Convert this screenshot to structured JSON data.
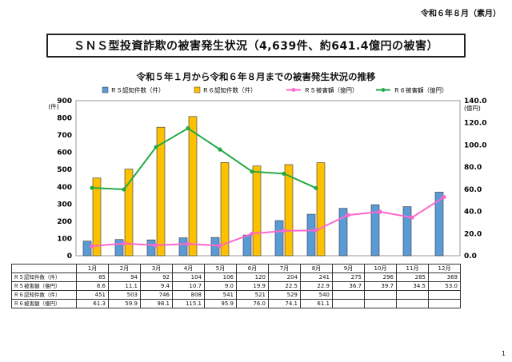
{
  "header": {
    "date_label": "令和６年８月（素月）",
    "title": "ＳＮＳ型投資詐欺の被害発生状況（4,639件、約641.4億円の被害）",
    "subtitle": "令和５年１月から令和６年８月までの被害発生状況の推移"
  },
  "page_number": "1",
  "colors": {
    "r5_count_bar": "#5b9bd5",
    "r6_count_bar": "#ffc000",
    "r5_damage_line": "#ff66cc",
    "r6_damage_line": "#22aa44"
  },
  "chart_data": {
    "type": "bar",
    "categories": [
      "1月",
      "2月",
      "3月",
      "4月",
      "5月",
      "6月",
      "7月",
      "8月",
      "9月",
      "10月",
      "11月",
      "12月"
    ],
    "series": [
      {
        "name": "Ｒ５認知件数（件）",
        "type": "bar",
        "axis": "left",
        "values": [
          85,
          94,
          92,
          104,
          106,
          120,
          204,
          241,
          275,
          296,
          285,
          369
        ]
      },
      {
        "name": "Ｒ６認知件数（件）",
        "type": "bar",
        "axis": "left",
        "values": [
          451,
          503,
          746,
          808,
          541,
          521,
          529,
          540,
          null,
          null,
          null,
          null
        ]
      },
      {
        "name": "Ｒ５被害額（億円）",
        "type": "line",
        "axis": "right",
        "values": [
          8.6,
          11.1,
          9.4,
          10.7,
          9.0,
          19.9,
          22.5,
          22.9,
          36.7,
          39.7,
          34.5,
          53.0
        ]
      },
      {
        "name": "Ｒ６被害額（億円）",
        "type": "line",
        "axis": "right",
        "values": [
          61.3,
          59.9,
          98.1,
          115.1,
          95.9,
          76.0,
          74.1,
          61.1,
          null,
          null,
          null,
          null
        ]
      }
    ],
    "y_left": {
      "unit": "(件)",
      "range": [
        0,
        900
      ],
      "ticks": [
        0,
        100,
        200,
        300,
        400,
        500,
        600,
        700,
        800,
        900
      ],
      "tick_labels": [
        "0",
        "100",
        "200",
        "300",
        "400",
        "500",
        "600",
        "700",
        "800",
        "900"
      ]
    },
    "y_right": {
      "unit": "(億円)",
      "range": [
        0,
        140
      ],
      "ticks": [
        0,
        20,
        40,
        60,
        80,
        100,
        120,
        140
      ],
      "tick_labels": [
        "0.0",
        "20.0",
        "40.0",
        "60.0",
        "80.0",
        "100.0",
        "120.0",
        "140.0"
      ]
    },
    "grid": false,
    "legend_position": "top"
  },
  "table": {
    "rows": [
      {
        "label": "Ｒ５認知件数（件）",
        "values": [
          "85",
          "94",
          "92",
          "104",
          "106",
          "120",
          "204",
          "241",
          "275",
          "296",
          "285",
          "369"
        ]
      },
      {
        "label": "Ｒ５被害額（億円）",
        "values": [
          "8.6",
          "11.1",
          "9.4",
          "10.7",
          "9.0",
          "19.9",
          "22.5",
          "22.9",
          "36.7",
          "39.7",
          "34.5",
          "53.0"
        ]
      },
      {
        "label": "Ｒ６認知件数（件）",
        "values": [
          "451",
          "503",
          "746",
          "808",
          "541",
          "521",
          "529",
          "540",
          "",
          "",
          "",
          ""
        ]
      },
      {
        "label": "Ｒ６被害額（億円）",
        "values": [
          "61.3",
          "59.9",
          "98.1",
          "115.1",
          "95.9",
          "76.0",
          "74.1",
          "61.1",
          "",
          "",
          "",
          ""
        ]
      }
    ]
  }
}
